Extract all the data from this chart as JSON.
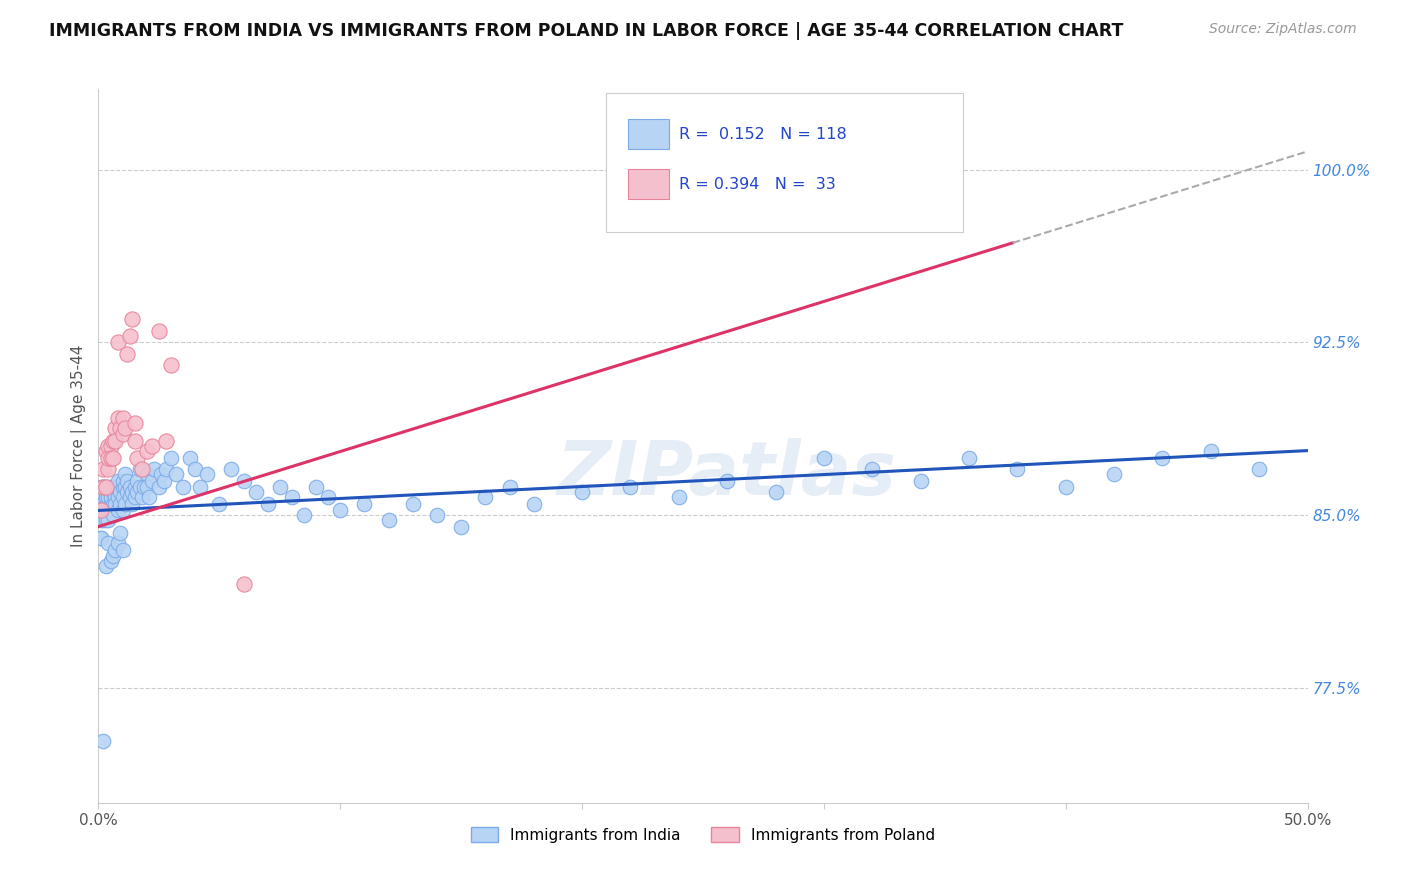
{
  "title": "IMMIGRANTS FROM INDIA VS IMMIGRANTS FROM POLAND IN LABOR FORCE | AGE 35-44 CORRELATION CHART",
  "source": "Source: ZipAtlas.com",
  "ylabel": "In Labor Force | Age 35-44",
  "xlim": [
    0.0,
    0.5
  ],
  "ylim": [
    0.725,
    1.035
  ],
  "xticks": [
    0.0,
    0.1,
    0.2,
    0.3,
    0.4,
    0.5
  ],
  "xtick_labels": [
    "0.0%",
    "",
    "",
    "",
    "",
    "50.0%"
  ],
  "yticks_right": [
    0.775,
    0.85,
    0.925,
    1.0
  ],
  "ytick_labels_right": [
    "77.5%",
    "85.0%",
    "92.5%",
    "100.0%"
  ],
  "india_color": "#b8d4f5",
  "india_edge_color": "#7aaae8",
  "poland_color": "#f5c0ce",
  "poland_edge_color": "#e8849a",
  "india_line_color": "#2255bb",
  "poland_line_color": "#dd3366",
  "india_line_y0": 0.852,
  "india_line_y1": 0.878,
  "poland_line_y0": 0.845,
  "poland_line_y1": 1.008,
  "poland_dashed_cutoff": 0.378,
  "watermark_text": "ZIPatlas",
  "legend_india_label": "Immigrants from India",
  "legend_poland_label": "Immigrants from Poland",
  "india_R": "0.152",
  "india_N": "118",
  "poland_R": "0.394",
  "poland_N": "33",
  "india_x": [
    0.001,
    0.001,
    0.001,
    0.001,
    0.002,
    0.002,
    0.002,
    0.002,
    0.002,
    0.003,
    0.003,
    0.003,
    0.003,
    0.003,
    0.003,
    0.004,
    0.004,
    0.004,
    0.004,
    0.005,
    0.005,
    0.005,
    0.005,
    0.005,
    0.006,
    0.006,
    0.006,
    0.006,
    0.007,
    0.007,
    0.007,
    0.008,
    0.008,
    0.008,
    0.008,
    0.009,
    0.009,
    0.01,
    0.01,
    0.01,
    0.01,
    0.011,
    0.011,
    0.011,
    0.012,
    0.012,
    0.013,
    0.013,
    0.014,
    0.014,
    0.015,
    0.015,
    0.016,
    0.016,
    0.017,
    0.017,
    0.018,
    0.019,
    0.02,
    0.02,
    0.021,
    0.022,
    0.023,
    0.025,
    0.026,
    0.027,
    0.028,
    0.03,
    0.032,
    0.035,
    0.038,
    0.04,
    0.042,
    0.045,
    0.05,
    0.055,
    0.06,
    0.065,
    0.07,
    0.075,
    0.08,
    0.085,
    0.09,
    0.095,
    0.1,
    0.11,
    0.12,
    0.13,
    0.14,
    0.15,
    0.16,
    0.17,
    0.18,
    0.2,
    0.22,
    0.24,
    0.26,
    0.28,
    0.3,
    0.32,
    0.34,
    0.36,
    0.38,
    0.4,
    0.42,
    0.44,
    0.46,
    0.48,
    0.001,
    0.002,
    0.003,
    0.004,
    0.005,
    0.006,
    0.007,
    0.008,
    0.009,
    0.01
  ],
  "india_y": [
    0.855,
    0.862,
    0.848,
    0.84,
    0.858,
    0.852,
    0.862,
    0.855,
    0.848,
    0.86,
    0.855,
    0.862,
    0.848,
    0.858,
    0.852,
    0.862,
    0.855,
    0.858,
    0.848,
    0.86,
    0.855,
    0.862,
    0.858,
    0.852,
    0.862,
    0.855,
    0.86,
    0.85,
    0.862,
    0.858,
    0.855,
    0.862,
    0.858,
    0.865,
    0.852,
    0.86,
    0.855,
    0.862,
    0.858,
    0.865,
    0.852,
    0.862,
    0.868,
    0.855,
    0.86,
    0.865,
    0.862,
    0.858,
    0.86,
    0.855,
    0.862,
    0.858,
    0.865,
    0.86,
    0.862,
    0.87,
    0.858,
    0.862,
    0.868,
    0.862,
    0.858,
    0.865,
    0.87,
    0.862,
    0.868,
    0.865,
    0.87,
    0.875,
    0.868,
    0.862,
    0.875,
    0.87,
    0.862,
    0.868,
    0.855,
    0.87,
    0.865,
    0.86,
    0.855,
    0.862,
    0.858,
    0.85,
    0.862,
    0.858,
    0.852,
    0.855,
    0.848,
    0.855,
    0.85,
    0.845,
    0.858,
    0.862,
    0.855,
    0.86,
    0.862,
    0.858,
    0.865,
    0.86,
    0.875,
    0.87,
    0.865,
    0.875,
    0.87,
    0.862,
    0.868,
    0.875,
    0.878,
    0.87,
    0.84,
    0.752,
    0.828,
    0.838,
    0.83,
    0.832,
    0.835,
    0.838,
    0.842,
    0.835
  ],
  "poland_x": [
    0.001,
    0.002,
    0.002,
    0.003,
    0.003,
    0.004,
    0.004,
    0.004,
    0.005,
    0.005,
    0.006,
    0.006,
    0.007,
    0.007,
    0.008,
    0.008,
    0.009,
    0.01,
    0.01,
    0.011,
    0.012,
    0.013,
    0.014,
    0.015,
    0.015,
    0.016,
    0.018,
    0.02,
    0.022,
    0.025,
    0.028,
    0.03,
    0.06
  ],
  "poland_y": [
    0.852,
    0.862,
    0.87,
    0.862,
    0.878,
    0.87,
    0.88,
    0.875,
    0.88,
    0.875,
    0.875,
    0.882,
    0.888,
    0.882,
    0.892,
    0.925,
    0.888,
    0.885,
    0.892,
    0.888,
    0.92,
    0.928,
    0.935,
    0.882,
    0.89,
    0.875,
    0.87,
    0.878,
    0.88,
    0.93,
    0.882,
    0.915,
    0.82
  ]
}
